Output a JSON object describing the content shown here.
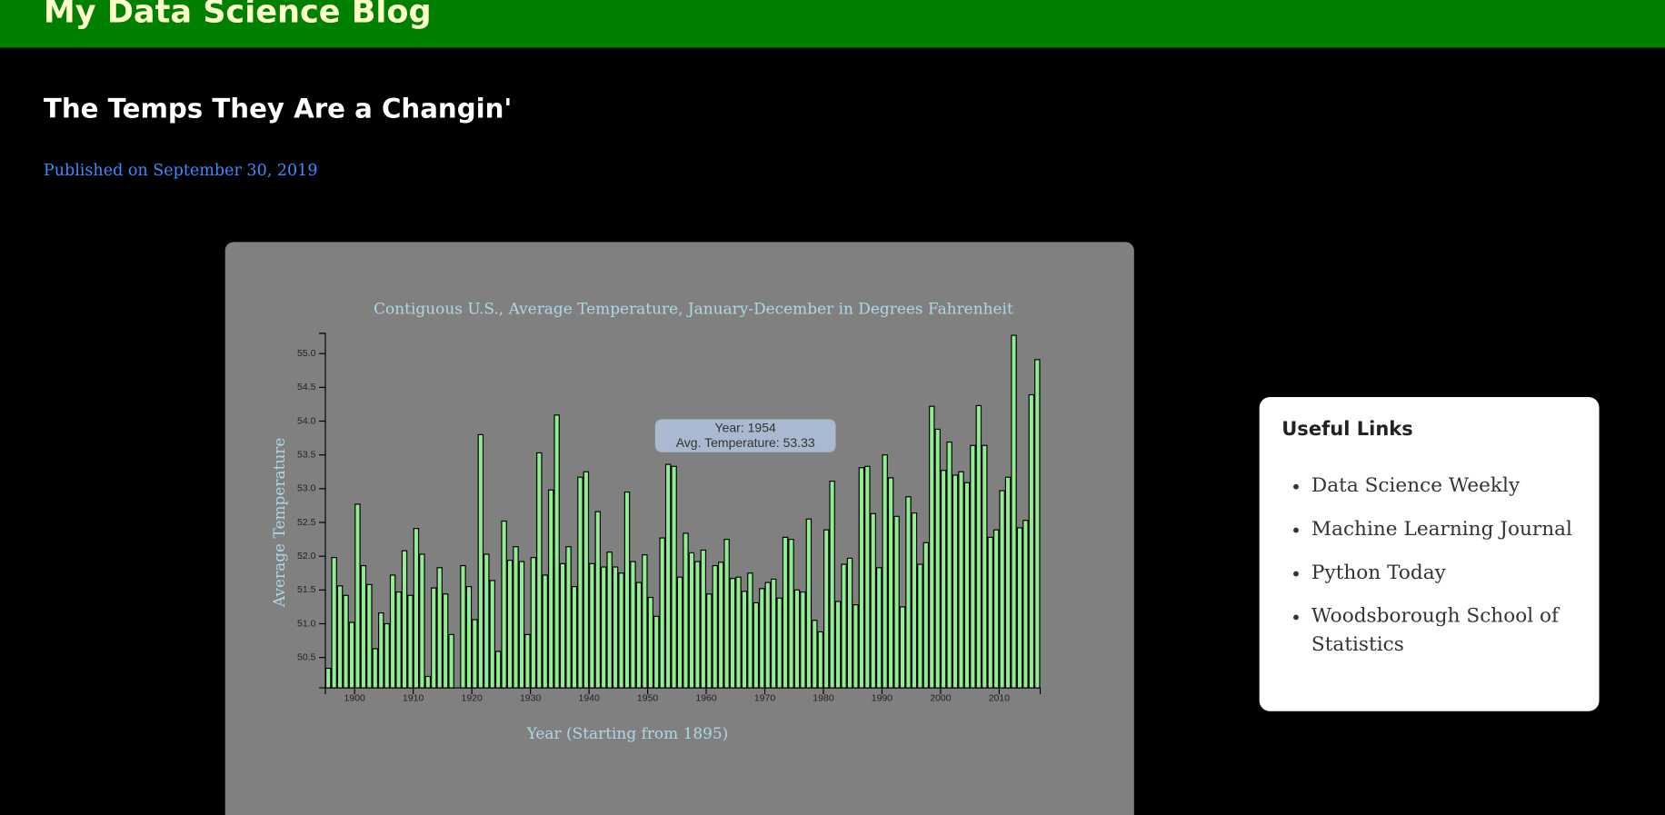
{
  "header": {
    "title": "My Data Science Blog"
  },
  "article": {
    "title": "The Temps They Are a Changin'",
    "published": "Published on September 30, 2019"
  },
  "chart_data": {
    "type": "bar",
    "title": "Contiguous U.S., Average Temperature, January-December in Degrees Fahrenheit",
    "x_label": "Year (Starting from 1895)",
    "y_label": "Average Temperature",
    "x": [
      1895,
      1896,
      1897,
      1898,
      1899,
      1900,
      1901,
      1902,
      1903,
      1904,
      1905,
      1906,
      1907,
      1908,
      1909,
      1910,
      1911,
      1912,
      1913,
      1914,
      1915,
      1916,
      1917,
      1918,
      1919,
      1920,
      1921,
      1922,
      1923,
      1924,
      1925,
      1926,
      1927,
      1928,
      1929,
      1930,
      1931,
      1932,
      1933,
      1934,
      1935,
      1936,
      1937,
      1938,
      1939,
      1940,
      1941,
      1942,
      1943,
      1944,
      1945,
      1946,
      1947,
      1948,
      1949,
      1950,
      1951,
      1952,
      1953,
      1954,
      1955,
      1956,
      1957,
      1958,
      1959,
      1960,
      1961,
      1962,
      1963,
      1964,
      1965,
      1966,
      1967,
      1968,
      1969,
      1970,
      1971,
      1972,
      1973,
      1974,
      1975,
      1976,
      1977,
      1978,
      1979,
      1980,
      1981,
      1982,
      1983,
      1984,
      1985,
      1986,
      1987,
      1988,
      1989,
      1990,
      1991,
      1992,
      1993,
      1994,
      1995,
      1996,
      1997,
      1998,
      1999,
      2000,
      2001,
      2002,
      2003,
      2004,
      2005,
      2006,
      2007,
      2008,
      2009,
      2010,
      2011,
      2012,
      2013,
      2014,
      2015,
      2016
    ],
    "values": [
      50.34,
      51.98,
      51.56,
      51.42,
      51.02,
      52.77,
      51.86,
      51.58,
      50.63,
      51.16,
      51.0,
      51.72,
      51.47,
      52.08,
      51.42,
      52.41,
      52.03,
      50.22,
      51.53,
      51.83,
      51.44,
      50.84,
      50.05,
      51.86,
      51.55,
      51.06,
      53.8,
      52.03,
      51.64,
      50.59,
      52.52,
      51.94,
      52.14,
      51.92,
      50.84,
      51.98,
      53.53,
      51.72,
      52.98,
      54.09,
      51.89,
      52.14,
      51.55,
      53.17,
      53.25,
      51.89,
      52.66,
      51.84,
      52.06,
      51.84,
      51.75,
      52.95,
      51.92,
      51.61,
      52.02,
      51.39,
      51.11,
      52.27,
      53.36,
      53.33,
      51.69,
      52.34,
      52.05,
      51.92,
      52.09,
      51.44,
      51.86,
      51.91,
      52.25,
      51.67,
      51.69,
      51.48,
      51.75,
      51.31,
      51.52,
      51.61,
      51.66,
      51.38,
      52.28,
      52.25,
      51.5,
      51.47,
      52.55,
      51.05,
      50.88,
      52.39,
      53.11,
      51.33,
      51.88,
      51.97,
      51.28,
      53.31,
      53.33,
      52.63,
      51.83,
      53.5,
      53.16,
      52.59,
      51.25,
      52.88,
      52.64,
      51.88,
      52.2,
      54.22,
      53.88,
      53.27,
      53.69,
      53.2,
      53.25,
      53.09,
      53.64,
      54.23,
      53.64,
      52.28,
      52.39,
      52.97,
      53.17,
      55.27,
      52.42,
      52.53,
      54.39,
      54.91
    ],
    "color": "#90ee90",
    "xlim": [
      1895,
      2017
    ],
    "xticks": [
      1900,
      1910,
      1920,
      1930,
      1940,
      1950,
      1960,
      1970,
      1980,
      1990,
      2000,
      2010
    ],
    "ylim": [
      50.05,
      55.3
    ],
    "yticks": [
      50.5,
      {
        "value": 51,
        "label": "51.0"
      },
      51.5,
      {
        "value": 52,
        "label": "52.0"
      },
      52.5,
      {
        "value": 53,
        "label": "53.0"
      },
      53.5,
      {
        "value": 54,
        "label": "54.0"
      },
      54.5,
      {
        "value": 55,
        "label": "55.0"
      }
    ],
    "grid": false,
    "tooltip": {
      "year": "Year: 1954",
      "temperature": "Avg. Temperature: 53.33"
    }
  },
  "sidebar": {
    "title": "Useful Links",
    "links": [
      "Data Science Weekly",
      "Machine Learning Journal",
      "Python Today",
      "Woodsborough School of Statistics"
    ]
  }
}
